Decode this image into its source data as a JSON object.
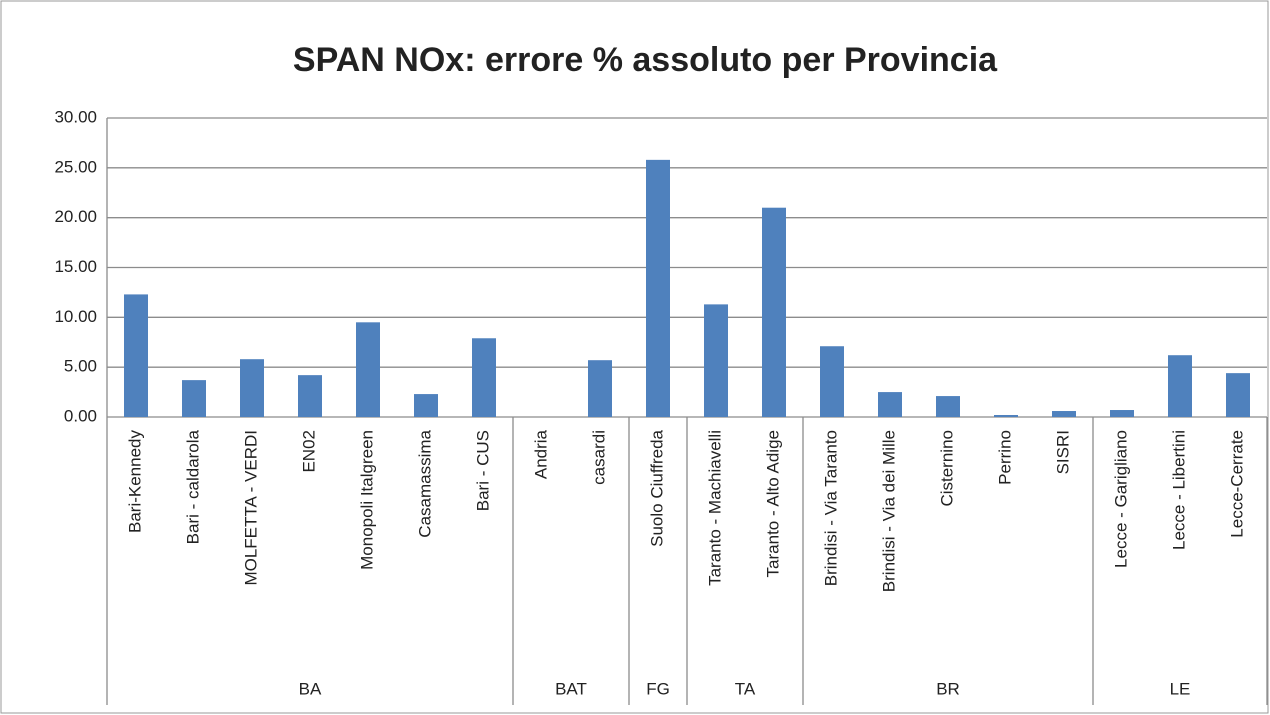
{
  "chart_data": {
    "type": "bar",
    "title": "SPAN NOx: errore % assoluto per Provincia",
    "color": "#4f81bd",
    "ylim": [
      0,
      30
    ],
    "yticks": [
      {
        "value": 0,
        "label": "0.00"
      },
      {
        "value": 5,
        "label": "5.00"
      },
      {
        "value": 10,
        "label": "10.00"
      },
      {
        "value": 15,
        "label": "15.00"
      },
      {
        "value": 20,
        "label": "20.00"
      },
      {
        "value": 25,
        "label": "25.00"
      },
      {
        "value": 30,
        "label": "30.00"
      }
    ],
    "grid": true,
    "groups": [
      {
        "label": "BA",
        "categories": [
          "Bari-Kennedy",
          "Bari - caldarola",
          "MOLFETTA - VERDI",
          "EN02",
          "Monopoli Italgreen",
          "Casamassima",
          "Bari - CUS"
        ],
        "values": [
          12.3,
          3.7,
          5.8,
          4.2,
          9.5,
          2.3,
          7.9
        ]
      },
      {
        "label": "BAT",
        "categories": [
          "Andria",
          "casardi"
        ],
        "values": [
          0,
          5.7
        ]
      },
      {
        "label": "FG",
        "categories": [
          "Suolo Ciuffreda"
        ],
        "values": [
          25.8
        ]
      },
      {
        "label": "TA",
        "categories": [
          "Taranto - Machiavelli",
          "Taranto - Alto Adige"
        ],
        "values": [
          11.3,
          21.0
        ]
      },
      {
        "label": "BR",
        "categories": [
          "Brindisi - Via Taranto",
          "Brindisi - Via dei Mille",
          "Cisternino",
          "Perrino",
          "SISRI"
        ],
        "values": [
          7.1,
          2.5,
          2.1,
          0.2,
          0.6
        ]
      },
      {
        "label": "LE",
        "categories": [
          "Lecce - Garigliano",
          "Lecce - Libertini",
          "Lecce-Cerrate"
        ],
        "values": [
          0.7,
          6.2,
          4.4
        ]
      }
    ]
  }
}
